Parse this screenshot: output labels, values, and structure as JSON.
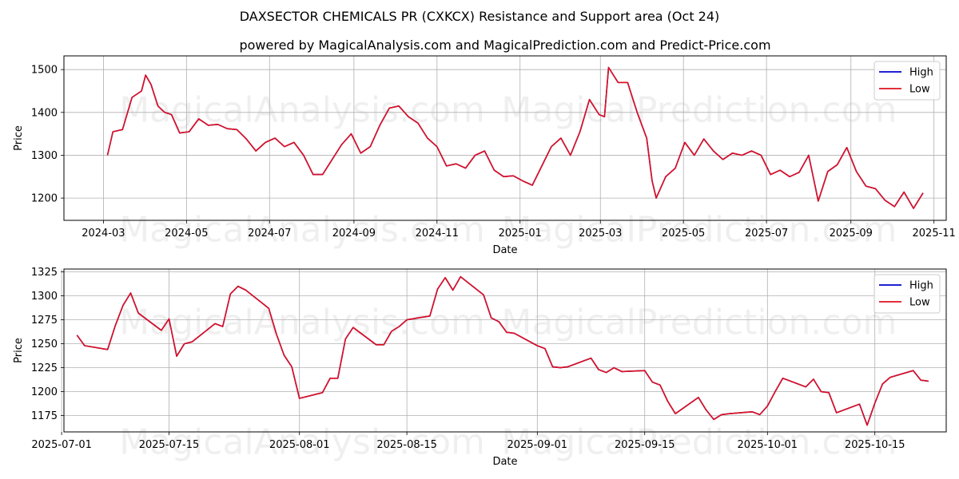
{
  "title": "DAXSECTOR CHEMICALS PR (CXKCX) Resistance and Support area (Oct 24)",
  "subtitle": "powered by MagicalAnalysis.com and MagicalPrediction.com and Predict-Price.com",
  "watermarks": [
    "MagicalAnalysis.com",
    "MagicalPrediction.com"
  ],
  "colors": {
    "high": "#0000cc",
    "low": "#e0101e",
    "grid": "#b0b0b0"
  },
  "chart_data": [
    {
      "type": "line",
      "xlabel": "Date",
      "ylabel": "Price",
      "x_ticks": [
        "2024-03",
        "2024-05",
        "2024-07",
        "2024-09",
        "2024-11",
        "2025-01",
        "2025-03",
        "2025-05",
        "2025-07",
        "2025-09",
        "2025-11"
      ],
      "y_ticks": [
        1200,
        1300,
        1400,
        1500
      ],
      "ylim": [
        1148,
        1532
      ],
      "legend": [
        "High",
        "Low"
      ],
      "legend_position": "top-right",
      "grid": true,
      "x": [
        "2024-03-04",
        "2024-03-08",
        "2024-03-15",
        "2024-03-22",
        "2024-03-29",
        "2024-04-01",
        "2024-04-05",
        "2024-04-10",
        "2024-04-15",
        "2024-04-20",
        "2024-04-26",
        "2024-05-03",
        "2024-05-10",
        "2024-05-17",
        "2024-05-24",
        "2024-05-31",
        "2024-06-07",
        "2024-06-14",
        "2024-06-21",
        "2024-06-28",
        "2024-07-05",
        "2024-07-12",
        "2024-07-19",
        "2024-07-26",
        "2024-08-02",
        "2024-08-09",
        "2024-08-16",
        "2024-08-23",
        "2024-08-30",
        "2024-09-06",
        "2024-09-13",
        "2024-09-20",
        "2024-09-27",
        "2024-10-04",
        "2024-10-11",
        "2024-10-18",
        "2024-10-25",
        "2024-11-01",
        "2024-11-08",
        "2024-11-15",
        "2024-11-22",
        "2024-11-29",
        "2024-12-06",
        "2024-12-13",
        "2024-12-20",
        "2024-12-27",
        "2025-01-03",
        "2025-01-10",
        "2025-01-17",
        "2025-01-24",
        "2025-01-31",
        "2025-02-07",
        "2025-02-14",
        "2025-02-21",
        "2025-02-28",
        "2025-03-04",
        "2025-03-07",
        "2025-03-14",
        "2025-03-21",
        "2025-03-28",
        "2025-04-04",
        "2025-04-08",
        "2025-04-11",
        "2025-04-18",
        "2025-04-25",
        "2025-05-02",
        "2025-05-09",
        "2025-05-16",
        "2025-05-23",
        "2025-05-30",
        "2025-06-06",
        "2025-06-13",
        "2025-06-20",
        "2025-06-27",
        "2025-07-04",
        "2025-07-11",
        "2025-07-18",
        "2025-07-25",
        "2025-08-01",
        "2025-08-08",
        "2025-08-15",
        "2025-08-22",
        "2025-08-29",
        "2025-09-05",
        "2025-09-12",
        "2025-09-19",
        "2025-09-26",
        "2025-10-03",
        "2025-10-10",
        "2025-10-17",
        "2025-10-24"
      ],
      "series": [
        {
          "name": "High",
          "values": [
            1300,
            1355,
            1360,
            1435,
            1450,
            1487,
            1465,
            1415,
            1400,
            1395,
            1352,
            1355,
            1385,
            1370,
            1372,
            1362,
            1360,
            1338,
            1310,
            1330,
            1340,
            1320,
            1330,
            1300,
            1255,
            1255,
            1290,
            1325,
            1350,
            1305,
            1320,
            1370,
            1410,
            1415,
            1390,
            1375,
            1340,
            1320,
            1275,
            1280,
            1270,
            1300,
            1310,
            1265,
            1250,
            1252,
            1240,
            1230,
            1275,
            1320,
            1340,
            1300,
            1355,
            1430,
            1395,
            1390,
            1505,
            1470,
            1470,
            1400,
            1340,
            1240,
            1200,
            1250,
            1270,
            1330,
            1300,
            1338,
            1310,
            1290,
            1305,
            1300,
            1310,
            1300,
            1255,
            1265,
            1250,
            1260,
            1300,
            1193,
            1262,
            1278,
            1318,
            1262,
            1228,
            1222,
            1195,
            1180,
            1214,
            1176,
            1212
          ]
        },
        {
          "name": "Low",
          "values": [
            1300,
            1355,
            1360,
            1435,
            1450,
            1487,
            1465,
            1415,
            1400,
            1395,
            1352,
            1355,
            1385,
            1370,
            1372,
            1362,
            1360,
            1338,
            1310,
            1330,
            1340,
            1320,
            1330,
            1300,
            1255,
            1255,
            1290,
            1325,
            1350,
            1305,
            1320,
            1370,
            1410,
            1415,
            1390,
            1375,
            1340,
            1320,
            1275,
            1280,
            1270,
            1300,
            1310,
            1265,
            1250,
            1252,
            1240,
            1230,
            1275,
            1320,
            1340,
            1300,
            1355,
            1430,
            1395,
            1390,
            1505,
            1470,
            1470,
            1400,
            1340,
            1240,
            1200,
            1250,
            1270,
            1330,
            1300,
            1338,
            1310,
            1290,
            1305,
            1300,
            1310,
            1300,
            1255,
            1265,
            1250,
            1260,
            1300,
            1193,
            1262,
            1278,
            1318,
            1262,
            1228,
            1222,
            1195,
            1180,
            1214,
            1176,
            1212
          ]
        }
      ]
    },
    {
      "type": "line",
      "xlabel": "Date",
      "ylabel": "Price",
      "x_ticks": [
        "2025-07-01",
        "2025-07-15",
        "2025-08-01",
        "2025-08-15",
        "2025-09-01",
        "2025-09-15",
        "2025-10-01",
        "2025-10-15"
      ],
      "y_ticks": [
        1175,
        1200,
        1225,
        1250,
        1275,
        1300,
        1325
      ],
      "ylim": [
        1158,
        1328
      ],
      "legend": [
        "High",
        "Low"
      ],
      "legend_position": "top-right",
      "grid": true,
      "x": [
        "2025-07-03",
        "2025-07-04",
        "2025-07-07",
        "2025-07-08",
        "2025-07-09",
        "2025-07-10",
        "2025-07-11",
        "2025-07-14",
        "2025-07-15",
        "2025-07-16",
        "2025-07-17",
        "2025-07-18",
        "2025-07-21",
        "2025-07-22",
        "2025-07-23",
        "2025-07-24",
        "2025-07-25",
        "2025-07-28",
        "2025-07-29",
        "2025-07-30",
        "2025-07-31",
        "2025-08-01",
        "2025-08-04",
        "2025-08-05",
        "2025-08-06",
        "2025-08-07",
        "2025-08-08",
        "2025-08-11",
        "2025-08-12",
        "2025-08-13",
        "2025-08-14",
        "2025-08-15",
        "2025-08-18",
        "2025-08-19",
        "2025-08-20",
        "2025-08-21",
        "2025-08-22",
        "2025-08-25",
        "2025-08-26",
        "2025-08-27",
        "2025-08-28",
        "2025-08-29",
        "2025-09-01",
        "2025-09-02",
        "2025-09-03",
        "2025-09-04",
        "2025-09-05",
        "2025-09-08",
        "2025-09-09",
        "2025-09-10",
        "2025-09-11",
        "2025-09-12",
        "2025-09-15",
        "2025-09-16",
        "2025-09-17",
        "2025-09-18",
        "2025-09-19",
        "2025-09-22",
        "2025-09-23",
        "2025-09-24",
        "2025-09-25",
        "2025-09-26",
        "2025-09-29",
        "2025-09-30",
        "2025-10-01",
        "2025-10-02",
        "2025-10-03",
        "2025-10-06",
        "2025-10-07",
        "2025-10-08",
        "2025-10-09",
        "2025-10-10",
        "2025-10-13",
        "2025-10-14",
        "2025-10-15",
        "2025-10-16",
        "2025-10-17",
        "2025-10-20",
        "2025-10-21",
        "2025-10-22"
      ],
      "series": [
        {
          "name": "High",
          "values": [
            1259,
            1248,
            1244,
            1269,
            1290,
            1303,
            1282,
            1264,
            1276,
            1237,
            1250,
            1252,
            1271,
            1268,
            1302,
            1310,
            1306,
            1287,
            1260,
            1238,
            1226,
            1193,
            1199,
            1214,
            1214,
            1255,
            1267,
            1249,
            1249,
            1263,
            1268,
            1275,
            1279,
            1307,
            1319,
            1306,
            1320,
            1301,
            1277,
            1273,
            1262,
            1261,
            1248,
            1245,
            1226,
            1225,
            1226,
            1235,
            1223,
            1220,
            1225,
            1221,
            1222,
            1210,
            1207,
            1190,
            1177,
            1194,
            1181,
            1171,
            1176,
            1177,
            1179,
            1176,
            1185,
            1200,
            1214,
            1205,
            1213,
            1200,
            1199,
            1178,
            1187,
            1165,
            1188,
            1208,
            1215,
            1222,
            1212,
            1211
          ]
        },
        {
          "name": "Low",
          "values": [
            1259,
            1248,
            1244,
            1269,
            1290,
            1303,
            1282,
            1264,
            1276,
            1237,
            1250,
            1252,
            1271,
            1268,
            1302,
            1310,
            1306,
            1287,
            1260,
            1238,
            1226,
            1193,
            1199,
            1214,
            1214,
            1255,
            1267,
            1249,
            1249,
            1263,
            1268,
            1275,
            1279,
            1307,
            1319,
            1306,
            1320,
            1301,
            1277,
            1273,
            1262,
            1261,
            1248,
            1245,
            1226,
            1225,
            1226,
            1235,
            1223,
            1220,
            1225,
            1221,
            1222,
            1210,
            1207,
            1190,
            1177,
            1194,
            1181,
            1171,
            1176,
            1177,
            1179,
            1176,
            1185,
            1200,
            1214,
            1205,
            1213,
            1200,
            1199,
            1178,
            1187,
            1165,
            1188,
            1208,
            1215,
            1222,
            1212,
            1211
          ]
        }
      ]
    }
  ]
}
